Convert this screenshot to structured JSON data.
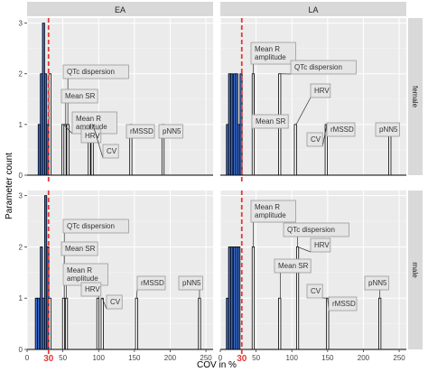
{
  "chart_data": {
    "type": "histogram",
    "ylabel": "Parameter count",
    "xlabel": "COV in %",
    "xlim": [
      0,
      260
    ],
    "ylim": [
      0,
      3.1
    ],
    "x_ticks": [
      0,
      50,
      100,
      150,
      200,
      250
    ],
    "y_ticks": [
      0,
      1,
      2,
      3
    ],
    "threshold": {
      "value": 30,
      "label": "30",
      "color": "#e53935"
    },
    "colors": {
      "below_threshold": "#3c6fd1",
      "above_threshold": "#ffffff",
      "strip": "#d9d9d9",
      "panel_bg": "#ebebeb",
      "label_box": "#e5e5e5"
    },
    "grid": true,
    "columns": [
      "EA",
      "LA"
    ],
    "rows": [
      "female",
      "male"
    ],
    "panels": [
      {
        "column": "EA",
        "row": "female",
        "bars": [
          {
            "x": 17,
            "count": 1
          },
          {
            "x": 20,
            "count": 2
          },
          {
            "x": 23,
            "count": 3
          },
          {
            "x": 26,
            "count": 2
          },
          {
            "x": 29,
            "count": 1
          },
          {
            "x": 32,
            "count": 2
          },
          {
            "x": 50,
            "count": 1
          },
          {
            "x": 53,
            "count": 1
          },
          {
            "x": 57,
            "count": 1
          },
          {
            "x": 87,
            "count": 1
          },
          {
            "x": 91,
            "count": 1
          },
          {
            "x": 145,
            "count": 1
          },
          {
            "x": 190,
            "count": 1
          }
        ],
        "labels": [
          {
            "text": "QTc dispersion",
            "x": 57,
            "count": 1
          },
          {
            "text": "Mean SR",
            "x": 54,
            "count": 1
          },
          {
            "text": "Mean R amplitude",
            "x": 51,
            "count": 1
          },
          {
            "text": "HRV",
            "x": 88,
            "count": 1
          },
          {
            "text": "CV",
            "x": 92,
            "count": 1
          },
          {
            "text": "rMSSD",
            "x": 146,
            "count": 1
          },
          {
            "text": "pNN5",
            "x": 190,
            "count": 1
          }
        ]
      },
      {
        "column": "LA",
        "row": "female",
        "bars": [
          {
            "x": 10,
            "count": 1
          },
          {
            "x": 13,
            "count": 2
          },
          {
            "x": 16,
            "count": 2
          },
          {
            "x": 20,
            "count": 2
          },
          {
            "x": 23,
            "count": 2
          },
          {
            "x": 26,
            "count": 1
          },
          {
            "x": 29,
            "count": 2
          },
          {
            "x": 46,
            "count": 2
          },
          {
            "x": 83,
            "count": 2
          },
          {
            "x": 105,
            "count": 1
          },
          {
            "x": 148,
            "count": 1
          },
          {
            "x": 237,
            "count": 1
          }
        ],
        "labels": [
          {
            "text": "Mean R amplitude",
            "x": 46,
            "count": 2
          },
          {
            "text": "QTc dispersion",
            "x": 84,
            "count": 2
          },
          {
            "text": "Mean SR",
            "x": 47,
            "count": 2
          },
          {
            "text": "HRV",
            "x": 106,
            "count": 1
          },
          {
            "text": "CV",
            "x": 149,
            "count": 1
          },
          {
            "text": "rMSSD",
            "x": 148,
            "count": 1
          },
          {
            "text": "pNN5",
            "x": 237,
            "count": 1
          }
        ]
      },
      {
        "column": "EA",
        "row": "male",
        "bars": [
          {
            "x": 13,
            "count": 1
          },
          {
            "x": 16,
            "count": 1
          },
          {
            "x": 20,
            "count": 2
          },
          {
            "x": 23,
            "count": 1
          },
          {
            "x": 26,
            "count": 3
          },
          {
            "x": 29,
            "count": 2
          },
          {
            "x": 32,
            "count": 1
          },
          {
            "x": 51,
            "count": 1
          },
          {
            "x": 55,
            "count": 1
          },
          {
            "x": 99,
            "count": 1
          },
          {
            "x": 105,
            "count": 1
          },
          {
            "x": 153,
            "count": 1
          },
          {
            "x": 241,
            "count": 1
          }
        ],
        "labels": [
          {
            "text": "QTc dispersion",
            "x": 52,
            "count": 1
          },
          {
            "text": "Mean SR",
            "x": 52,
            "count": 1
          },
          {
            "text": "Mean R amplitude",
            "x": 55,
            "count": 1
          },
          {
            "text": "HRV",
            "x": 100,
            "count": 1
          },
          {
            "text": "CV",
            "x": 105,
            "count": 1
          },
          {
            "text": "rMSSD",
            "x": 153,
            "count": 1
          },
          {
            "text": "pNN5",
            "x": 241,
            "count": 1
          }
        ]
      },
      {
        "column": "LA",
        "row": "male",
        "bars": [
          {
            "x": 10,
            "count": 1
          },
          {
            "x": 13,
            "count": 2
          },
          {
            "x": 16,
            "count": 2
          },
          {
            "x": 20,
            "count": 2
          },
          {
            "x": 23,
            "count": 2
          },
          {
            "x": 26,
            "count": 2
          },
          {
            "x": 46,
            "count": 2
          },
          {
            "x": 83,
            "count": 1
          },
          {
            "x": 108,
            "count": 2
          },
          {
            "x": 150,
            "count": 1
          },
          {
            "x": 223,
            "count": 1
          }
        ],
        "labels": [
          {
            "text": "Mean R amplitude",
            "x": 46,
            "count": 2
          },
          {
            "text": "QTc dispersion",
            "x": 108,
            "count": 2
          },
          {
            "text": "HRV",
            "x": 108,
            "count": 2
          },
          {
            "text": "Mean SR",
            "x": 84,
            "count": 1
          },
          {
            "text": "CV",
            "x": 150,
            "count": 1
          },
          {
            "text": "rMSSD",
            "x": 150,
            "count": 1
          },
          {
            "text": "pNN5",
            "x": 223,
            "count": 1
          }
        ]
      }
    ]
  }
}
